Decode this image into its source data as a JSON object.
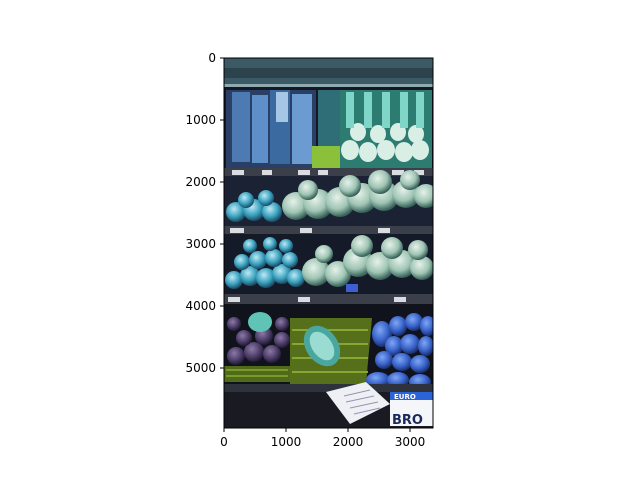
{
  "figure": {
    "x_ticks": [
      "0",
      "1000",
      "2000",
      "3000"
    ],
    "y_ticks": [
      "0",
      "1000",
      "2000",
      "3000",
      "4000",
      "5000"
    ]
  },
  "image_extent": {
    "width": 3370,
    "height": 6000
  },
  "image_content": {
    "description": "Supermarket produce shelf (false-color/channel-swapped photo) with bagged greens, leeks, cabbages, onions in crates, and blue potatoes.",
    "sign_texts": [
      "EURO",
      "BRO"
    ]
  },
  "colors": {
    "shelf_dark": "#1a1d2a",
    "teal_produce": "#4fb6c4",
    "pale_green": "#b6d4c4",
    "crate_olive": "#5f7a1e",
    "blue_potatoes": "#3d6fd6",
    "purple_onions": "#5b4a78"
  }
}
